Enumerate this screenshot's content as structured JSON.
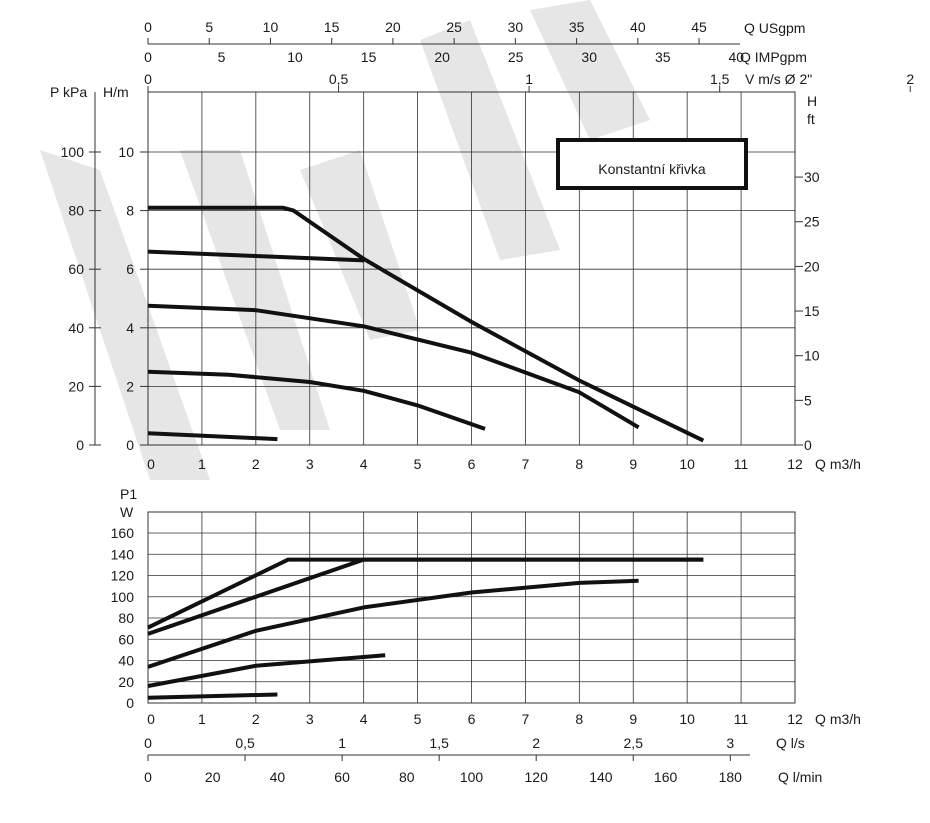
{
  "colors": {
    "curve": "#111111",
    "grid": "#333333",
    "watermark": "#e6e6e6"
  },
  "watermark": "WWW",
  "chart_data": [
    {
      "type": "line",
      "title": "Konstantní křivka",
      "xlabel": "Q m3/h",
      "xlim": [
        0,
        12
      ],
      "ylim": [
        0,
        12
      ],
      "grid": true,
      "x_ticks": [
        "0",
        "1",
        "2",
        "3",
        "4",
        "5",
        "6",
        "7",
        "8",
        "9",
        "10",
        "11",
        "12"
      ],
      "left_axes": [
        {
          "label": "P kPa",
          "ticks": [
            "0",
            "20",
            "40",
            "60",
            "80",
            "100"
          ]
        },
        {
          "label": "H/m",
          "ticks": [
            "0",
            "2",
            "4",
            "6",
            "8",
            "10"
          ]
        }
      ],
      "right_axis": {
        "label_top": "H",
        "label_bottom": "ft",
        "ticks": [
          "0",
          "5",
          "10",
          "15",
          "20",
          "25",
          "30"
        ]
      },
      "top_axes": [
        {
          "label": "Q USgpm",
          "ticks": [
            "0",
            "5",
            "10",
            "15",
            "20",
            "25",
            "30",
            "35",
            "40",
            "45"
          ]
        },
        {
          "label": "Q IMPgpm",
          "ticks": [
            "0",
            "5",
            "10",
            "15",
            "20",
            "25",
            "30",
            "35",
            "40"
          ]
        },
        {
          "label": "V m/s Ø 2\"",
          "ticks": [
            "0",
            "0,5",
            "1",
            "1,5",
            "2"
          ]
        }
      ],
      "series": [
        {
          "x": [
            0,
            2.4
          ],
          "y": [
            0.4,
            0.2
          ]
        },
        {
          "x": [
            0,
            1.5,
            3,
            4,
            5,
            6.25
          ],
          "y": [
            2.5,
            2.4,
            2.15,
            1.85,
            1.35,
            0.55
          ]
        },
        {
          "x": [
            0,
            2,
            4,
            6,
            8,
            9.1
          ],
          "y": [
            4.75,
            4.6,
            4.05,
            3.15,
            1.8,
            0.6
          ]
        },
        {
          "x": [
            0,
            2,
            4
          ],
          "y": [
            6.6,
            6.45,
            6.3
          ]
        },
        {
          "x": [
            0,
            2.5,
            2.7,
            4,
            6,
            8,
            10.3
          ],
          "y": [
            8.1,
            8.1,
            8.0,
            6.35,
            4.2,
            2.2,
            0.15
          ]
        }
      ]
    },
    {
      "type": "line",
      "xlabel": "Q m3/h",
      "xlim": [
        0,
        12
      ],
      "ylim": [
        0,
        180
      ],
      "grid": true,
      "x_ticks": [
        "0",
        "1",
        "2",
        "3",
        "4",
        "5",
        "6",
        "7",
        "8",
        "9",
        "10",
        "11",
        "12"
      ],
      "y_axis": {
        "label_top": "P1",
        "label_bottom": "W",
        "ticks": [
          "0",
          "20",
          "40",
          "60",
          "80",
          "100",
          "120",
          "140",
          "160"
        ]
      },
      "bottom_axes": [
        {
          "label": "Q l/s",
          "ticks": [
            "0",
            "0,5",
            "1",
            "1,5",
            "2",
            "2,5",
            "3"
          ]
        },
        {
          "label": "Q l/min",
          "ticks": [
            "0",
            "20",
            "40",
            "60",
            "80",
            "100",
            "120",
            "140",
            "160",
            "180"
          ]
        }
      ],
      "series": [
        {
          "x": [
            0,
            2.4
          ],
          "y": [
            5,
            8
          ]
        },
        {
          "x": [
            0,
            2,
            4.4
          ],
          "y": [
            16,
            35,
            45
          ]
        },
        {
          "x": [
            0,
            2,
            4,
            6,
            8,
            9.1
          ],
          "y": [
            34,
            68,
            90,
            104,
            113,
            115
          ]
        },
        {
          "x": [
            0,
            4,
            10.3
          ],
          "y": [
            65,
            135,
            135
          ]
        },
        {
          "x": [
            0,
            2.6,
            10.3
          ],
          "y": [
            71,
            135,
            135
          ]
        }
      ]
    }
  ]
}
